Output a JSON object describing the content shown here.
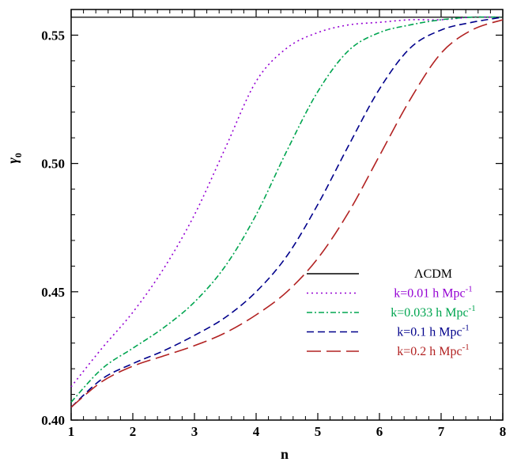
{
  "chart_data": {
    "type": "line",
    "xlabel": "n",
    "ylabel": "γ",
    "ylabel_sub": "0",
    "xlim": [
      1,
      8
    ],
    "ylim": [
      0.4,
      0.56
    ],
    "x_ticks": [
      1,
      2,
      3,
      4,
      5,
      6,
      7,
      8
    ],
    "x_tick_labels": [
      "1",
      "2",
      "3",
      "4",
      "5",
      "6",
      "7",
      "8"
    ],
    "y_ticks": [
      0.4,
      0.45,
      0.5,
      0.55
    ],
    "y_tick_labels": [
      "0.40",
      "0.45",
      "0.50",
      "0.55"
    ],
    "grid": false,
    "legend_position": "bottom-right",
    "series": [
      {
        "name": "ΛCDM",
        "color": "#000000",
        "style": "solid",
        "x": [
          1,
          8
        ],
        "y": [
          0.557,
          0.557
        ]
      },
      {
        "name": "k=0.01 h Mpc",
        "name_sup": "-1",
        "color": "#9400d3",
        "style": "dotted",
        "x": [
          1,
          1.5,
          2,
          2.5,
          3,
          3.5,
          4,
          4.5,
          5,
          5.5,
          6,
          6.5,
          7,
          7.5,
          8
        ],
        "y": [
          0.413,
          0.428,
          0.442,
          0.459,
          0.48,
          0.506,
          0.532,
          0.545,
          0.551,
          0.554,
          0.555,
          0.556,
          0.556,
          0.557,
          0.557
        ]
      },
      {
        "name": "k=0.033 h Mpc",
        "name_sup": "-1",
        "color": "#00a550",
        "style": "dashdot",
        "x": [
          1,
          1.5,
          2,
          2.5,
          3,
          3.5,
          4,
          4.5,
          5,
          5.5,
          6,
          6.5,
          7,
          7.5,
          8
        ],
        "y": [
          0.407,
          0.42,
          0.428,
          0.436,
          0.446,
          0.46,
          0.48,
          0.505,
          0.528,
          0.544,
          0.551,
          0.554,
          0.556,
          0.557,
          0.557
        ]
      },
      {
        "name": "k=0.1 h Mpc",
        "name_sup": "-1",
        "color": "#00008b",
        "style": "dashed",
        "x": [
          1,
          1.5,
          2,
          2.5,
          3,
          3.5,
          4,
          4.5,
          5,
          5.5,
          6,
          6.5,
          7,
          7.5,
          8
        ],
        "y": [
          0.405,
          0.416,
          0.422,
          0.427,
          0.433,
          0.44,
          0.45,
          0.464,
          0.484,
          0.507,
          0.529,
          0.545,
          0.552,
          0.555,
          0.557
        ]
      },
      {
        "name": "k=0.2 h Mpc",
        "name_sup": "-1",
        "color": "#b22222",
        "style": "longdash",
        "x": [
          1,
          1.5,
          2,
          2.5,
          3,
          3.5,
          4,
          4.5,
          5,
          5.5,
          6,
          6.5,
          7,
          7.5,
          8
        ],
        "y": [
          0.405,
          0.415,
          0.421,
          0.425,
          0.429,
          0.434,
          0.441,
          0.45,
          0.463,
          0.481,
          0.503,
          0.525,
          0.543,
          0.552,
          0.556
        ]
      }
    ]
  }
}
